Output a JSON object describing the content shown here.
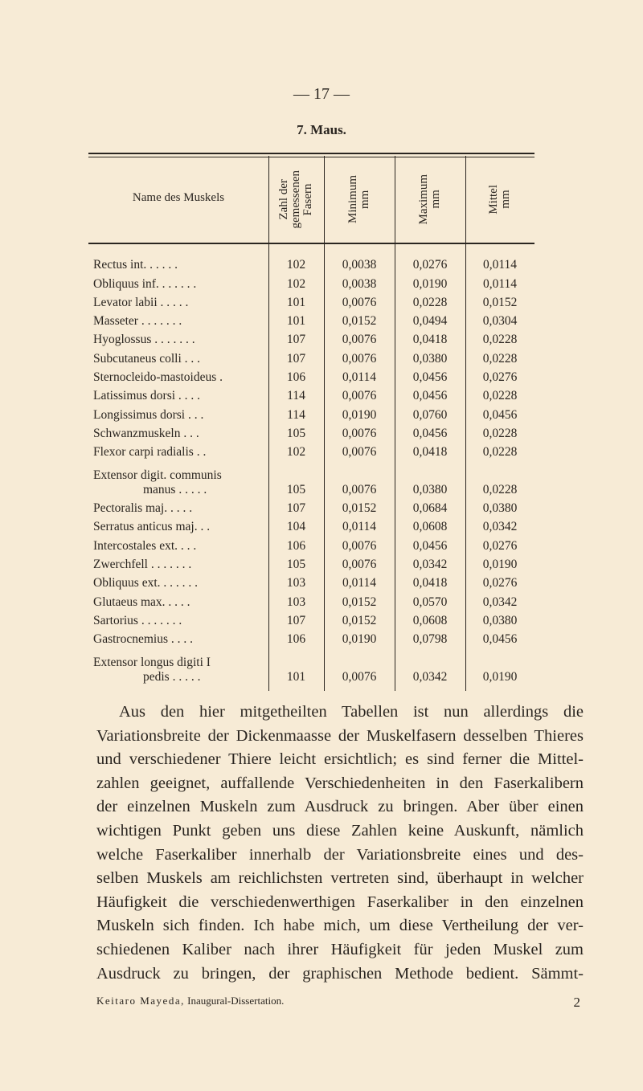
{
  "page_number": "— 17 —",
  "section_title": "7. Maus.",
  "table": {
    "headers": {
      "name": "Name des Muskels",
      "count": "Zahl der\ngemessenen\nFasern",
      "min": "Minimum\nmm",
      "max": "Maximum\nmm",
      "mean": "Mittel\nmm"
    },
    "rows": [
      {
        "name": "Rectus int. . . . . .",
        "count": "102",
        "min": "0,0038",
        "max": "0,0276",
        "mean": "0,0114"
      },
      {
        "name": "Obliquus inf. . . . . . .",
        "count": "102",
        "min": "0,0038",
        "max": "0,0190",
        "mean": "0,0114"
      },
      {
        "name": "Levator labii . . . . .",
        "count": "101",
        "min": "0,0076",
        "max": "0,0228",
        "mean": "0,0152"
      },
      {
        "name": "Masseter . . . . . . .",
        "count": "101",
        "min": "0,0152",
        "max": "0,0494",
        "mean": "0,0304"
      },
      {
        "name": "Hyoglossus . . . . . . .",
        "count": "107",
        "min": "0,0076",
        "max": "0,0418",
        "mean": "0,0228"
      },
      {
        "name": "Subcutaneus colli . . .",
        "count": "107",
        "min": "0,0076",
        "max": "0,0380",
        "mean": "0,0228"
      },
      {
        "name": "Sternocleido-mastoideus .",
        "count": "106",
        "min": "0,0114",
        "max": "0,0456",
        "mean": "0,0276"
      },
      {
        "name": "Latissimus dorsi . . . .",
        "count": "114",
        "min": "0,0076",
        "max": "0,0456",
        "mean": "0,0228"
      },
      {
        "name": "Longissimus dorsi . . .",
        "count": "114",
        "min": "0,0190",
        "max": "0,0760",
        "mean": "0,0456"
      },
      {
        "name": "Schwanzmuskeln . . .",
        "count": "105",
        "min": "0,0076",
        "max": "0,0456",
        "mean": "0,0228"
      },
      {
        "name": "Flexor carpi radialis . .",
        "count": "102",
        "min": "0,0076",
        "max": "0,0418",
        "mean": "0,0228"
      },
      {
        "name": "Extensor digit. communis",
        "name2": "manus . . . . .",
        "count": "105",
        "min": "0,0076",
        "max": "0,0380",
        "mean": "0,0228"
      },
      {
        "name": "Pectoralis maj. . . . .",
        "count": "107",
        "min": "0,0152",
        "max": "0,0684",
        "mean": "0,0380"
      },
      {
        "name": "Serratus anticus maj. . .",
        "count": "104",
        "min": "0,0114",
        "max": "0,0608",
        "mean": "0,0342"
      },
      {
        "name": "Intercostales ext. . . .",
        "count": "106",
        "min": "0,0076",
        "max": "0,0456",
        "mean": "0,0276"
      },
      {
        "name": "Zwerchfell . . . . . . .",
        "count": "105",
        "min": "0,0076",
        "max": "0,0342",
        "mean": "0,0190"
      },
      {
        "name": "Obliquus ext. . . . . . .",
        "count": "103",
        "min": "0,0114",
        "max": "0,0418",
        "mean": "0,0276"
      },
      {
        "name": "Glutaeus max. . . . .",
        "count": "103",
        "min": "0,0152",
        "max": "0,0570",
        "mean": "0,0342"
      },
      {
        "name": "Sartorius . . . . . . .",
        "count": "107",
        "min": "0,0152",
        "max": "0,0608",
        "mean": "0,0380"
      },
      {
        "name": "Gastrocnemius . . . .",
        "count": "106",
        "min": "0,0190",
        "max": "0,0798",
        "mean": "0,0456"
      },
      {
        "name": "Extensor longus digiti I",
        "name2": "pedis . . . . .",
        "count": "101",
        "min": "0,0076",
        "max": "0,0342",
        "mean": "0,0190"
      }
    ]
  },
  "paragraph_lines": [
    "Aus den hier mitgetheilten Tabellen ist nun allerdings die",
    "Variationsbreite der Dickenmaasse der Muskelfasern desselben Thieres",
    "und verschiedener Thiere leicht ersichtlich; es sind ferner die Mittel-",
    "zahlen geeignet, auffallende Verschiedenheiten in den Faserkalibern",
    "der einzelnen Muskeln zum Ausdruck zu bringen. Aber über einen",
    "wichtigen Punkt geben uns diese Zahlen keine Auskunft, nämlich",
    "welche Faserkaliber innerhalb der Variationsbreite eines und des-",
    "selben Muskels am reichlichsten vertreten sind, überhaupt in welcher",
    "Häufigkeit die verschiedenwerthigen Faserkaliber in den einzelnen",
    "Muskeln sich finden. Ich habe mich, um diese Vertheilung der ver-",
    "schiedenen Kaliber nach ihrer Häufigkeit für jeden Muskel zum",
    "Ausdruck zu bringen, der graphischen Methode bedient. Sämmt-"
  ],
  "footer": {
    "author": "Keitaro Mayeda,",
    "work": "Inaugural-Dissertation.",
    "signature": "2"
  }
}
